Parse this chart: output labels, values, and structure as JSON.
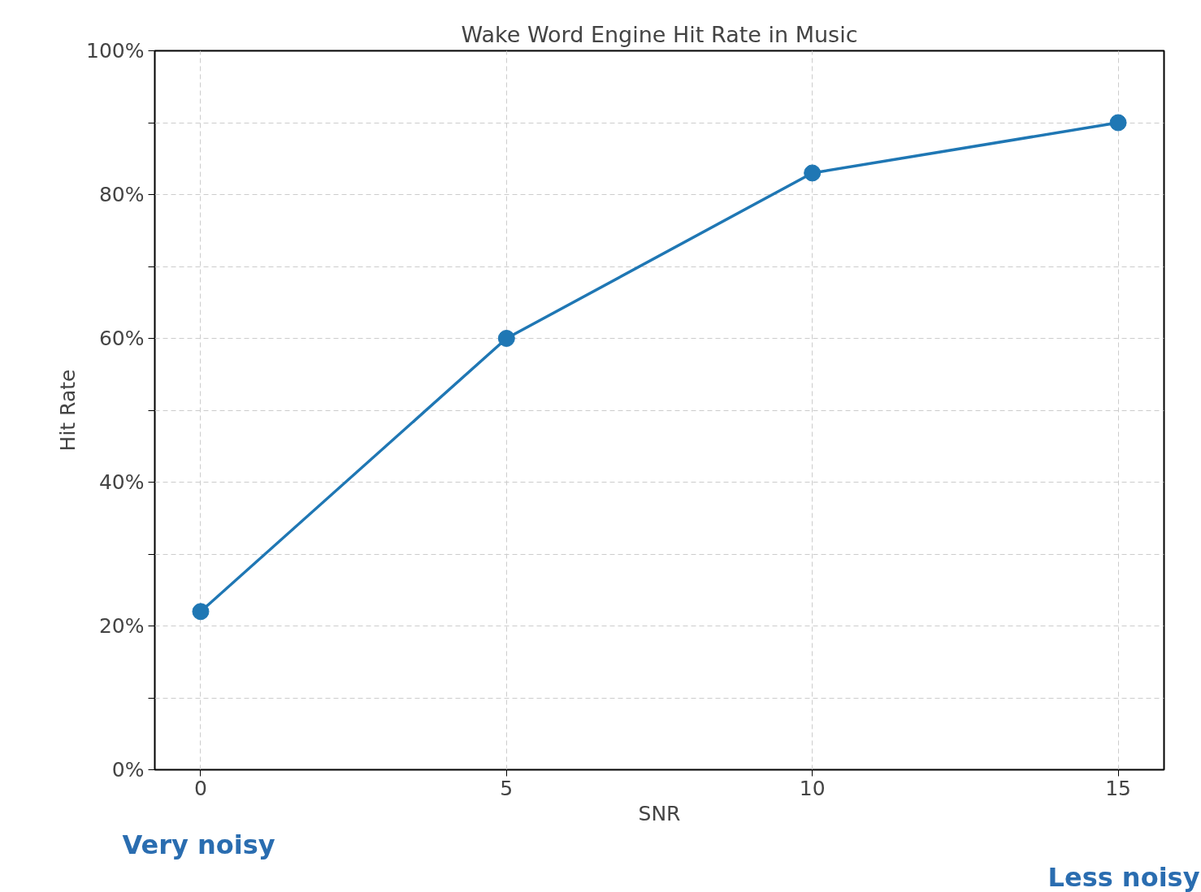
{
  "chart_data": {
    "type": "line",
    "title": "Wake Word Engine Hit Rate in Music",
    "xlabel": "SNR",
    "ylabel": "Hit Rate",
    "x": [
      0,
      5,
      10,
      15
    ],
    "series": [
      {
        "color": "#1f77b4",
        "values": [
          22,
          60,
          83,
          90
        ]
      }
    ],
    "marker": "circle",
    "line_style": "solid",
    "grid": true,
    "xlim": [
      -0.75,
      15.75
    ],
    "xticks": [
      0,
      5,
      10,
      15
    ],
    "ylim": [
      0,
      100
    ],
    "yticks": [
      {
        "value": 0,
        "label": "0%"
      },
      {
        "value": 10,
        "label": null
      },
      {
        "value": 20,
        "label": "20%"
      },
      {
        "value": 30,
        "label": null
      },
      {
        "value": 40,
        "label": "40%"
      },
      {
        "value": 50,
        "label": null
      },
      {
        "value": 60,
        "label": "60%"
      },
      {
        "value": 70,
        "label": null
      },
      {
        "value": 80,
        "label": "80%"
      },
      {
        "value": 90,
        "label": null
      },
      {
        "value": 100,
        "label": "100%"
      }
    ],
    "annotations": [
      "Very noisy",
      "Less noisy"
    ]
  }
}
